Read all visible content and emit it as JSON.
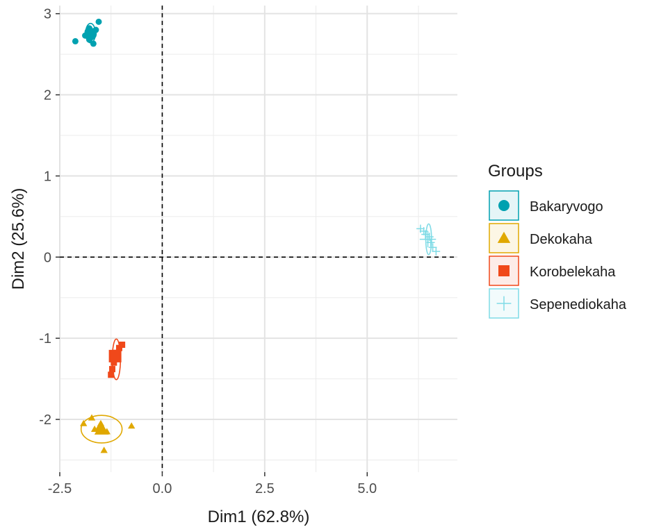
{
  "chart_data": {
    "type": "scatter",
    "title": "",
    "xlabel": "Dim1 (62.8%)",
    "ylabel": "Dim2 (25.6%)",
    "xlim": [
      -2.5,
      7.2
    ],
    "ylim": [
      -2.65,
      3.1
    ],
    "xticks": [
      -2.5,
      0.0,
      2.5,
      5.0
    ],
    "xtick_labels": [
      "-2.5",
      "0.0",
      "2.5",
      "5.0"
    ],
    "yticks": [
      -2,
      -1,
      0,
      1,
      2,
      3
    ],
    "ytick_labels": [
      "-2",
      "-1",
      "0",
      "1",
      "2",
      "3"
    ],
    "grid": true,
    "reference_lines": {
      "x": 0,
      "y": 0,
      "style": "dashed"
    },
    "legend": {
      "title": "Groups",
      "position": "right"
    },
    "series": [
      {
        "name": "Bakaryvogo",
        "color": "#00a1b0",
        "marker": "circle",
        "points": [
          [
            -2.12,
            2.66
          ],
          [
            -1.88,
            2.73
          ],
          [
            -1.82,
            2.78
          ],
          [
            -1.78,
            2.82
          ],
          [
            -1.75,
            2.7
          ],
          [
            -1.72,
            2.76
          ],
          [
            -1.7,
            2.75
          ],
          [
            -1.68,
            2.63
          ],
          [
            -1.62,
            2.8
          ],
          [
            -1.55,
            2.9
          ],
          [
            -1.78,
            2.68
          ]
        ],
        "mean": [
          -1.75,
          2.75
        ],
        "ellipse": {
          "center": [
            -1.75,
            2.76
          ],
          "rx": 0.12,
          "ry": 0.12
        }
      },
      {
        "name": "Dekokaha",
        "color": "#e0a800",
        "marker": "triangle",
        "points": [
          [
            -1.92,
            -2.05
          ],
          [
            -1.72,
            -1.98
          ],
          [
            -1.65,
            -2.12
          ],
          [
            -1.55,
            -2.1
          ],
          [
            -1.5,
            -2.05
          ],
          [
            -1.42,
            -2.38
          ],
          [
            -1.35,
            -2.15
          ],
          [
            -0.75,
            -2.08
          ]
        ],
        "mean": [
          -1.48,
          -2.12
        ],
        "ellipse": {
          "center": [
            -1.48,
            -2.12
          ],
          "rx": 0.5,
          "ry": 0.17
        }
      },
      {
        "name": "Korobelekaha",
        "color": "#f0481a",
        "marker": "square",
        "points": [
          [
            -1.25,
            -1.45
          ],
          [
            -1.22,
            -1.38
          ],
          [
            -1.18,
            -1.3
          ],
          [
            -1.15,
            -1.22
          ],
          [
            -1.12,
            -1.18
          ],
          [
            -1.05,
            -1.12
          ],
          [
            -0.98,
            -1.08
          ]
        ],
        "mean": [
          -1.15,
          -1.22
        ],
        "ellipse": {
          "center": [
            -1.12,
            -1.26
          ],
          "rx": 0.1,
          "ry": 0.25
        }
      },
      {
        "name": "Sepenediokaha",
        "color": "#7fdbe6",
        "marker": "plus",
        "points": [
          [
            6.3,
            0.35
          ],
          [
            6.38,
            0.32
          ],
          [
            6.42,
            0.28
          ],
          [
            6.48,
            0.22
          ],
          [
            6.55,
            0.18
          ],
          [
            6.6,
            0.12
          ],
          [
            6.68,
            0.07
          ],
          [
            6.52,
            0.25
          ]
        ],
        "mean": [
          6.48,
          0.22
        ],
        "ellipse": {
          "center": [
            6.5,
            0.22
          ],
          "rx": 0.07,
          "ry": 0.19
        }
      }
    ]
  }
}
